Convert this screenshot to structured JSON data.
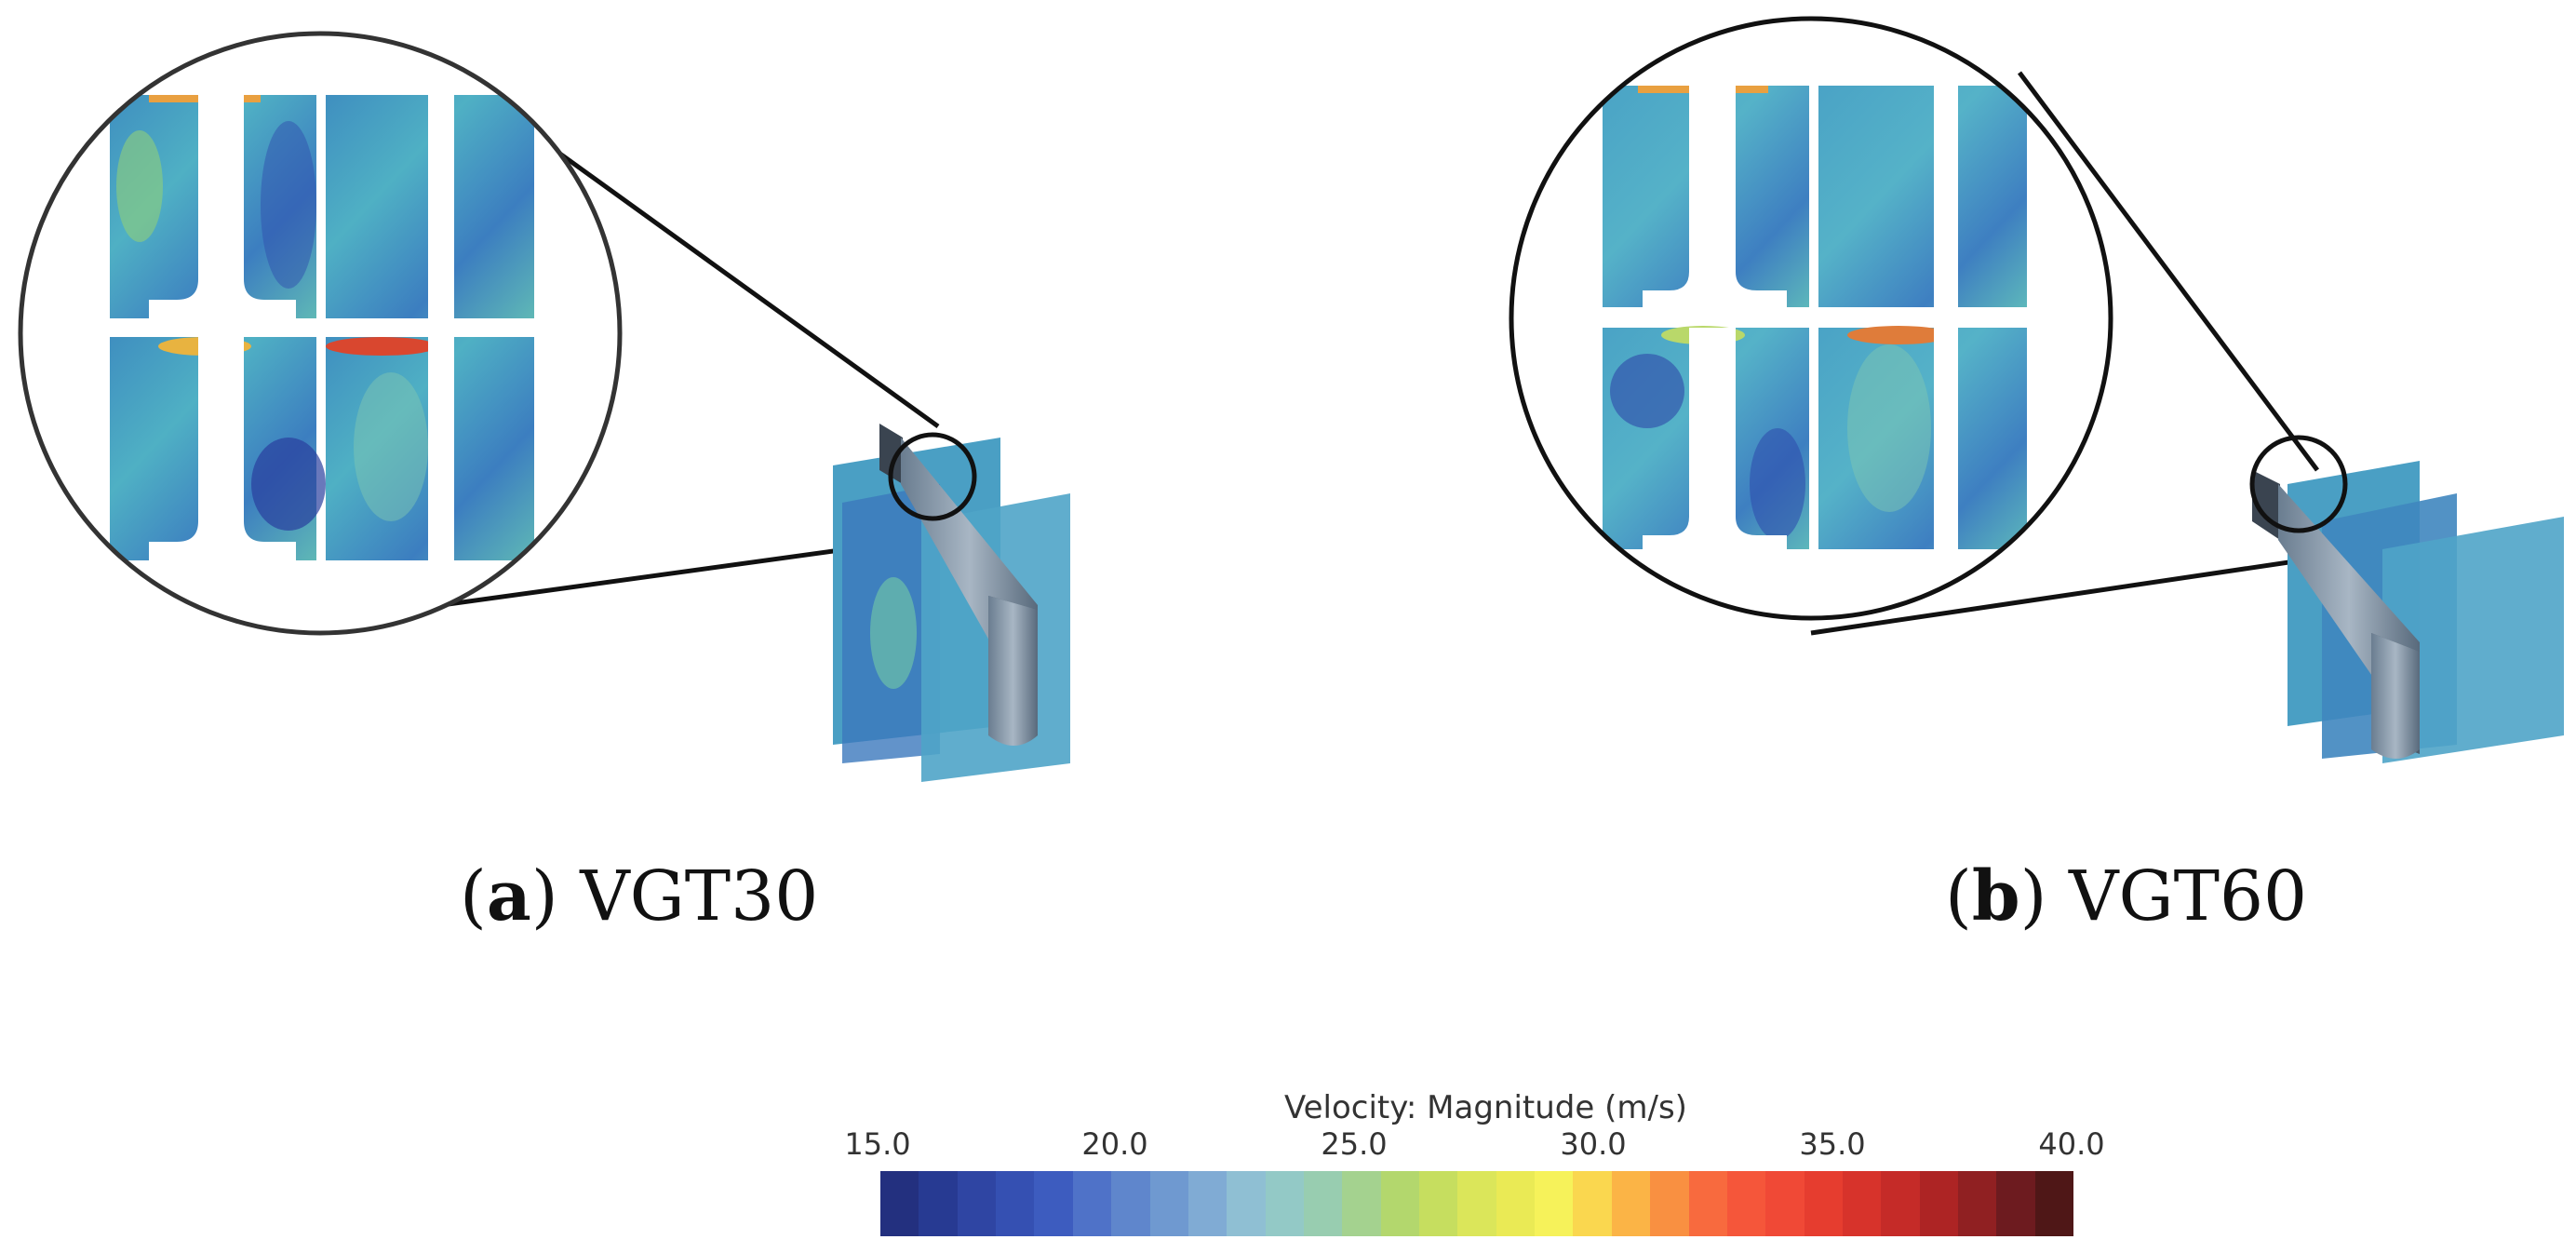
{
  "panels": [
    {
      "label": "a",
      "title": "VGT30"
    },
    {
      "label": "b",
      "title": "VGT60"
    }
  ],
  "colorbar": {
    "title": "Velocity: Magnitude (m/s)",
    "ticks": [
      "15.0",
      "20.0",
      "25.0",
      "30.0",
      "35.0",
      "40.0"
    ],
    "colors": [
      "#23307f",
      "#273a92",
      "#2f45a3",
      "#3550b2",
      "#3d5cbf",
      "#4f72c8",
      "#5f86cc",
      "#6f99d0",
      "#80abd4",
      "#8fbfd3",
      "#93c9c6",
      "#98cdb0",
      "#a4d28f",
      "#b3d76d",
      "#c6de5f",
      "#dbe65a",
      "#eaea55",
      "#f6f25a",
      "#fad74f",
      "#fbb446",
      "#f99041",
      "#f86a3e",
      "#f5563a",
      "#f04936",
      "#e63d2f",
      "#d7332b",
      "#c52b28",
      "#ad2424",
      "#902022",
      "#6d1b1f",
      "#4f1717"
    ]
  }
}
